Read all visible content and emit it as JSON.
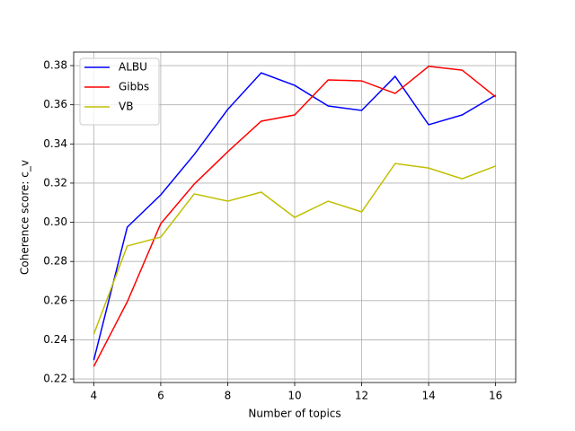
{
  "chart_data": {
    "type": "line",
    "x_label": "Number of topics",
    "y_label": "Coherence score: c_v",
    "x": [
      4,
      5,
      6,
      7,
      8,
      9,
      10,
      11,
      12,
      13,
      14,
      15,
      16
    ],
    "series": [
      {
        "name": "ALBU",
        "color": "#0000ff",
        "values": [
          0.2296,
          0.2975,
          0.314,
          0.3346,
          0.3576,
          0.3763,
          0.3699,
          0.3594,
          0.3571,
          0.3745,
          0.3498,
          0.3548,
          0.3649
        ]
      },
      {
        "name": "Gibbs",
        "color": "#ff0000",
        "values": [
          0.2264,
          0.2594,
          0.2993,
          0.3195,
          0.336,
          0.3516,
          0.3548,
          0.3727,
          0.3722,
          0.3658,
          0.3796,
          0.3777,
          0.364
        ]
      },
      {
        "name": "VB",
        "color": "#bfbf00",
        "values": [
          0.2429,
          0.2879,
          0.2924,
          0.3145,
          0.3108,
          0.3154,
          0.3025,
          0.3108,
          0.3053,
          0.33,
          0.3277,
          0.3222,
          0.3287
        ]
      }
    ],
    "xlim": [
      3.4,
      16.6
    ],
    "xticks": [
      4,
      6,
      8,
      10,
      12,
      14,
      16
    ],
    "ylim": [
      0.2182,
      0.3869
    ],
    "yticks": [
      0.22,
      0.24,
      0.26,
      0.28,
      {
        "value": 0.3,
        "label": "0.30"
      },
      0.32,
      0.34,
      0.36,
      0.38
    ],
    "grid": true,
    "legend": "upper left"
  }
}
